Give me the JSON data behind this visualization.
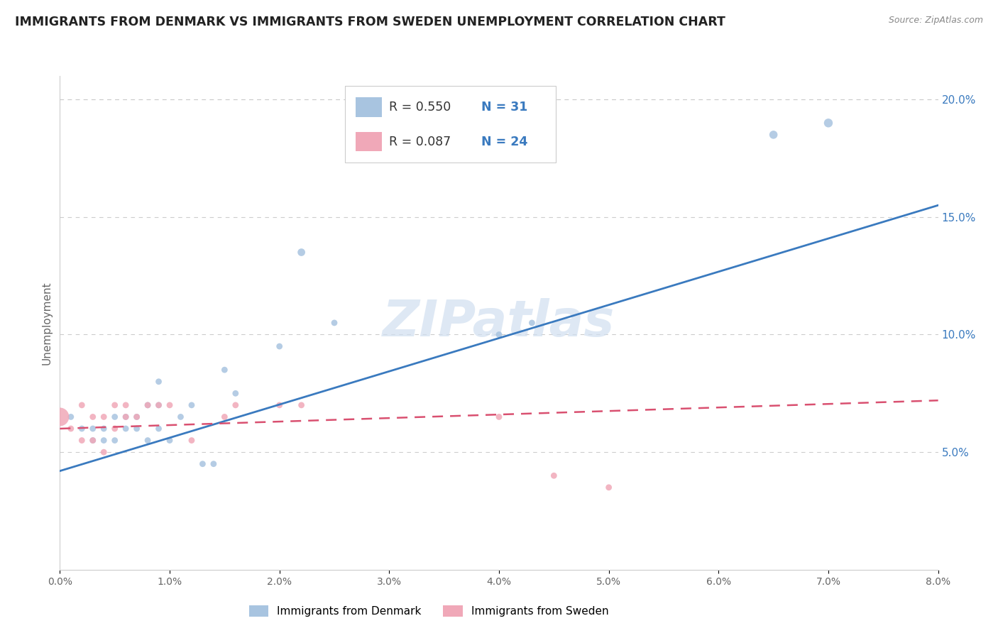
{
  "title": "IMMIGRANTS FROM DENMARK VS IMMIGRANTS FROM SWEDEN UNEMPLOYMENT CORRELATION CHART",
  "source": "Source: ZipAtlas.com",
  "ylabel": "Unemployment",
  "legend_bottom": [
    "Immigrants from Denmark",
    "Immigrants from Sweden"
  ],
  "denmark_color": "#a8c4e0",
  "sweden_color": "#f0a8b8",
  "denmark_line_color": "#3a7abf",
  "sweden_line_color": "#d95070",
  "watermark": "ZIPatlas",
  "xlim": [
    0.0,
    0.08
  ],
  "ylim": [
    0.0,
    0.21
  ],
  "r_denmark": "R = 0.550",
  "n_denmark": "N = 31",
  "r_sweden": "R = 0.087",
  "n_sweden": "N = 24",
  "denmark_scatter": [
    [
      0.001,
      0.065
    ],
    [
      0.002,
      0.06
    ],
    [
      0.003,
      0.055
    ],
    [
      0.003,
      0.06
    ],
    [
      0.004,
      0.055
    ],
    [
      0.004,
      0.06
    ],
    [
      0.005,
      0.055
    ],
    [
      0.005,
      0.065
    ],
    [
      0.006,
      0.06
    ],
    [
      0.006,
      0.065
    ],
    [
      0.007,
      0.06
    ],
    [
      0.007,
      0.065
    ],
    [
      0.008,
      0.055
    ],
    [
      0.008,
      0.07
    ],
    [
      0.009,
      0.06
    ],
    [
      0.009,
      0.07
    ],
    [
      0.009,
      0.08
    ],
    [
      0.01,
      0.055
    ],
    [
      0.011,
      0.065
    ],
    [
      0.012,
      0.07
    ],
    [
      0.013,
      0.045
    ],
    [
      0.014,
      0.045
    ],
    [
      0.015,
      0.085
    ],
    [
      0.016,
      0.075
    ],
    [
      0.02,
      0.095
    ],
    [
      0.022,
      0.135
    ],
    [
      0.025,
      0.105
    ],
    [
      0.04,
      0.1
    ],
    [
      0.043,
      0.105
    ],
    [
      0.065,
      0.185
    ],
    [
      0.07,
      0.19
    ]
  ],
  "denmark_sizes": [
    40,
    40,
    40,
    40,
    40,
    40,
    40,
    40,
    40,
    40,
    40,
    40,
    40,
    40,
    40,
    40,
    40,
    40,
    40,
    40,
    40,
    40,
    40,
    40,
    40,
    60,
    40,
    40,
    40,
    70,
    80
  ],
  "sweden_scatter": [
    [
      0.0,
      0.065
    ],
    [
      0.001,
      0.06
    ],
    [
      0.002,
      0.055
    ],
    [
      0.002,
      0.07
    ],
    [
      0.003,
      0.055
    ],
    [
      0.003,
      0.065
    ],
    [
      0.004,
      0.05
    ],
    [
      0.004,
      0.065
    ],
    [
      0.005,
      0.06
    ],
    [
      0.005,
      0.07
    ],
    [
      0.006,
      0.065
    ],
    [
      0.006,
      0.07
    ],
    [
      0.007,
      0.065
    ],
    [
      0.008,
      0.07
    ],
    [
      0.009,
      0.07
    ],
    [
      0.01,
      0.07
    ],
    [
      0.012,
      0.055
    ],
    [
      0.015,
      0.065
    ],
    [
      0.016,
      0.07
    ],
    [
      0.02,
      0.07
    ],
    [
      0.022,
      0.07
    ],
    [
      0.04,
      0.065
    ],
    [
      0.045,
      0.04
    ],
    [
      0.05,
      0.035
    ]
  ],
  "sweden_sizes": [
    350,
    40,
    40,
    40,
    40,
    40,
    40,
    40,
    40,
    40,
    40,
    40,
    40,
    40,
    40,
    40,
    40,
    40,
    40,
    40,
    40,
    40,
    40,
    40
  ],
  "denmark_line_x": [
    0.0,
    0.08
  ],
  "denmark_line_y": [
    0.042,
    0.155
  ],
  "sweden_line_x": [
    0.0,
    0.08
  ],
  "sweden_line_y": [
    0.06,
    0.072
  ]
}
